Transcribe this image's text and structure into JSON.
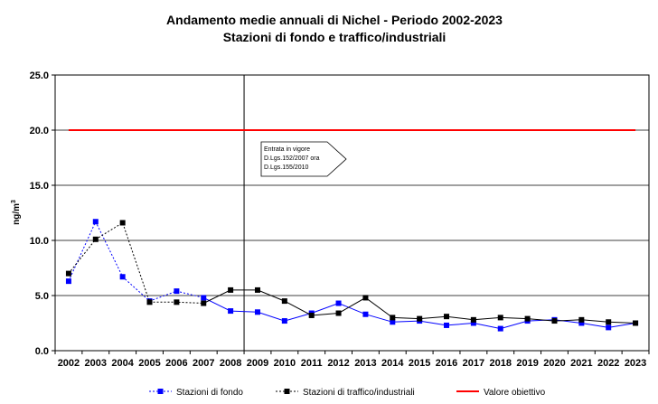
{
  "chart_data": {
    "type": "line",
    "title": "Andamento medie annuali di Nichel - Periodo 2002-2023",
    "subtitle": "Stazioni di fondo e traffico/industriali",
    "ylabel": "ng/m³",
    "ylabel_base": "ng/m",
    "ylabel_sup": "3",
    "ylim": [
      0,
      25
    ],
    "y_ticks": [
      "0.0",
      "5.0",
      "10.0",
      "15.0",
      "20.0",
      "25.0"
    ],
    "grid": "horizontal",
    "legend_position": "bottom",
    "categories": [
      "2002",
      "2003",
      "2004",
      "2005",
      "2006",
      "2007",
      "2008",
      "2009",
      "2010",
      "2011",
      "2012",
      "2013",
      "2014",
      "2015",
      "2016",
      "2017",
      "2018",
      "2019",
      "2020",
      "2021",
      "2022",
      "2023"
    ],
    "series": [
      {
        "name": "Stazioni di fondo",
        "color": "#0000ff",
        "marker": "square",
        "x": [
          0,
          1,
          2,
          3,
          4,
          5,
          6,
          7,
          8,
          9,
          10,
          11,
          12,
          13,
          14,
          15,
          16,
          17,
          18,
          19,
          20,
          21
        ],
        "values": [
          6.3,
          11.7,
          6.7,
          4.5,
          5.4,
          4.8,
          3.6,
          3.5,
          2.7,
          3.4,
          4.3,
          3.3,
          2.6,
          2.7,
          2.3,
          2.5,
          2.0,
          2.7,
          2.8,
          2.5,
          2.1,
          2.5
        ],
        "style_first": "dashed",
        "dashed_until_index": 5
      },
      {
        "name": "Stazioni di traffico/industriali",
        "color": "#000000",
        "marker": "square",
        "x": [
          0,
          1,
          2,
          3,
          4,
          5,
          6,
          7,
          8,
          9,
          10,
          11,
          12,
          13,
          14,
          15,
          16,
          17,
          18,
          19,
          20,
          21
        ],
        "values": [
          7.0,
          10.1,
          11.6,
          4.4,
          4.4,
          4.3,
          5.5,
          5.5,
          4.5,
          3.2,
          3.4,
          4.8,
          3.0,
          2.9,
          3.1,
          2.8,
          3.0,
          2.9,
          2.7,
          2.8,
          2.6,
          2.5
        ],
        "style_first": "dashed",
        "dashed_until_index": 5
      },
      {
        "name": "Valore obiettivo",
        "color": "#ff0000",
        "type": "hline",
        "value": 20
      }
    ],
    "vline_category": "2009",
    "annotation": [
      "Entrata in vigore",
      "D.Lgs.152/2007 ora",
      "D.Lgs.155/2010"
    ]
  }
}
